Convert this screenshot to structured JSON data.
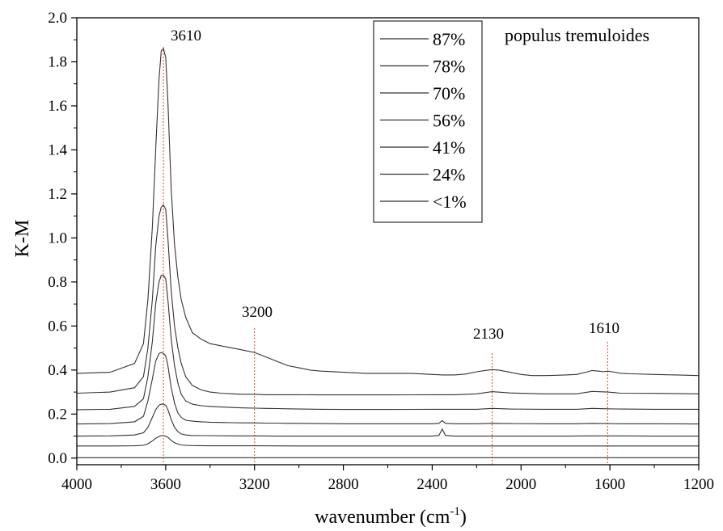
{
  "chart_data": {
    "type": "line",
    "title": "",
    "plot_label": "populus tremuloides",
    "xlabel": "wavenumber (cm",
    "xlabel_sup": "-1",
    "xlabel_suffix": ")",
    "ylabel": "K-M",
    "xlim": [
      4000,
      1200
    ],
    "ylim": [
      -0.03,
      2.0
    ],
    "x_reversed": true,
    "x_ticks": [
      "4000",
      "3600",
      "3200",
      "2800",
      "2400",
      "2000",
      "1600",
      "1200"
    ],
    "x_tick_values": [
      4000,
      3600,
      3200,
      2800,
      2400,
      2000,
      1600,
      1200
    ],
    "y_ticks": [
      "0.0",
      "0.2",
      "0.4",
      "0.6",
      "0.8",
      "1.0",
      "1.2",
      "1.4",
      "1.6",
      "1.8",
      "2.0"
    ],
    "y_tick_values": [
      0.0,
      0.2,
      0.4,
      0.6,
      0.8,
      1.0,
      1.2,
      1.4,
      1.6,
      1.8,
      2.0
    ],
    "grid": false,
    "legend_position": "top-right",
    "line_color": "#333333",
    "marker_color": "#e8412c",
    "annotations": [
      {
        "label": "3610",
        "x": 3610
      },
      {
        "label": "3200",
        "x": 3200
      },
      {
        "label": "2130",
        "x": 2130
      },
      {
        "label": "1610",
        "x": 1610
      }
    ],
    "series": [
      {
        "name": "87%",
        "x": [
          4000,
          3850,
          3740,
          3700,
          3680,
          3660,
          3645,
          3630,
          3620,
          3610,
          3600,
          3590,
          3575,
          3560,
          3545,
          3530,
          3510,
          3480,
          3440,
          3400,
          3350,
          3300,
          3250,
          3200,
          3150,
          3100,
          3050,
          3000,
          2950,
          2900,
          2800,
          2700,
          2600,
          2500,
          2400,
          2350,
          2300,
          2250,
          2200,
          2150,
          2130,
          2100,
          2050,
          2000,
          1950,
          1900,
          1850,
          1800,
          1750,
          1700,
          1680,
          1650,
          1630,
          1610,
          1590,
          1550,
          1500,
          1400,
          1300,
          1200
        ],
        "y": [
          0.385,
          0.39,
          0.43,
          0.52,
          0.72,
          1.05,
          1.4,
          1.72,
          1.85,
          1.86,
          1.82,
          1.62,
          1.22,
          0.97,
          0.82,
          0.72,
          0.64,
          0.57,
          0.54,
          0.52,
          0.51,
          0.5,
          0.49,
          0.48,
          0.46,
          0.44,
          0.42,
          0.41,
          0.4,
          0.395,
          0.39,
          0.385,
          0.385,
          0.385,
          0.38,
          0.378,
          0.378,
          0.382,
          0.392,
          0.4,
          0.402,
          0.4,
          0.39,
          0.38,
          0.375,
          0.375,
          0.376,
          0.378,
          0.38,
          0.392,
          0.398,
          0.395,
          0.392,
          0.395,
          0.392,
          0.385,
          0.383,
          0.38,
          0.378,
          0.375
        ]
      },
      {
        "name": "78%",
        "x": [
          4000,
          3850,
          3740,
          3700,
          3680,
          3660,
          3645,
          3630,
          3620,
          3610,
          3600,
          3590,
          3575,
          3560,
          3545,
          3530,
          3510,
          3480,
          3440,
          3400,
          3350,
          3300,
          3250,
          3200,
          3150,
          3100,
          3050,
          3000,
          2900,
          2800,
          2600,
          2400,
          2350,
          2300,
          2200,
          2130,
          2050,
          1900,
          1750,
          1680,
          1610,
          1550,
          1400,
          1200
        ],
        "y": [
          0.295,
          0.3,
          0.32,
          0.37,
          0.5,
          0.72,
          0.96,
          1.1,
          1.14,
          1.15,
          1.13,
          1.0,
          0.76,
          0.6,
          0.5,
          0.43,
          0.37,
          0.33,
          0.31,
          0.3,
          0.295,
          0.292,
          0.29,
          0.29,
          0.288,
          0.288,
          0.288,
          0.288,
          0.287,
          0.287,
          0.287,
          0.288,
          0.288,
          0.288,
          0.292,
          0.302,
          0.296,
          0.292,
          0.292,
          0.303,
          0.3,
          0.295,
          0.294,
          0.292
        ]
      },
      {
        "name": "70%",
        "x": [
          4000,
          3850,
          3740,
          3700,
          3680,
          3660,
          3645,
          3630,
          3620,
          3610,
          3600,
          3590,
          3575,
          3560,
          3545,
          3530,
          3510,
          3480,
          3440,
          3400,
          3350,
          3300,
          3250,
          3200,
          3150,
          3100,
          3050,
          3000,
          2900,
          2800,
          2600,
          2400,
          2350,
          2300,
          2200,
          2130,
          2050,
          1900,
          1750,
          1680,
          1610,
          1550,
          1400,
          1200
        ],
        "y": [
          0.22,
          0.222,
          0.235,
          0.27,
          0.37,
          0.53,
          0.7,
          0.8,
          0.83,
          0.83,
          0.815,
          0.72,
          0.54,
          0.42,
          0.34,
          0.29,
          0.26,
          0.245,
          0.238,
          0.235,
          0.232,
          0.23,
          0.228,
          0.227,
          0.226,
          0.225,
          0.224,
          0.223,
          0.222,
          0.221,
          0.221,
          0.222,
          0.222,
          0.222,
          0.222,
          0.226,
          0.223,
          0.222,
          0.222,
          0.226,
          0.224,
          0.223,
          0.222,
          0.222
        ]
      },
      {
        "name": "56%",
        "x": [
          4000,
          3850,
          3740,
          3700,
          3680,
          3660,
          3645,
          3630,
          3620,
          3610,
          3600,
          3590,
          3575,
          3560,
          3545,
          3530,
          3510,
          3480,
          3440,
          3400,
          3350,
          3300,
          3250,
          3200,
          3150,
          3100,
          3050,
          3000,
          2900,
          2800,
          2600,
          2400,
          2370,
          2355,
          2340,
          2300,
          2200,
          2130,
          2050,
          1900,
          1750,
          1680,
          1610,
          1550,
          1400,
          1200
        ],
        "y": [
          0.155,
          0.157,
          0.165,
          0.19,
          0.26,
          0.36,
          0.44,
          0.475,
          0.48,
          0.475,
          0.465,
          0.42,
          0.32,
          0.25,
          0.205,
          0.185,
          0.172,
          0.168,
          0.165,
          0.163,
          0.162,
          0.161,
          0.16,
          0.16,
          0.159,
          0.159,
          0.158,
          0.158,
          0.157,
          0.156,
          0.156,
          0.156,
          0.158,
          0.17,
          0.158,
          0.156,
          0.156,
          0.158,
          0.157,
          0.156,
          0.156,
          0.158,
          0.157,
          0.156,
          0.156,
          0.155
        ]
      },
      {
        "name": "41%",
        "x": [
          4000,
          3850,
          3740,
          3700,
          3680,
          3660,
          3645,
          3630,
          3620,
          3610,
          3600,
          3590,
          3575,
          3560,
          3545,
          3530,
          3510,
          3480,
          3440,
          3400,
          3300,
          3200,
          3100,
          3000,
          2800,
          2600,
          2400,
          2370,
          2355,
          2340,
          2300,
          2200,
          2130,
          2000,
          1800,
          1680,
          1610,
          1400,
          1200
        ],
        "y": [
          0.1,
          0.101,
          0.105,
          0.115,
          0.14,
          0.185,
          0.22,
          0.24,
          0.245,
          0.245,
          0.24,
          0.22,
          0.175,
          0.14,
          0.12,
          0.11,
          0.105,
          0.103,
          0.102,
          0.102,
          0.101,
          0.101,
          0.1,
          0.1,
          0.1,
          0.1,
          0.1,
          0.103,
          0.132,
          0.103,
          0.1,
          0.1,
          0.1,
          0.1,
          0.1,
          0.101,
          0.101,
          0.1,
          0.1
        ]
      },
      {
        "name": "24%",
        "x": [
          4000,
          3850,
          3740,
          3700,
          3680,
          3660,
          3645,
          3630,
          3620,
          3610,
          3600,
          3590,
          3575,
          3560,
          3545,
          3530,
          3510,
          3480,
          3400,
          3200,
          3000,
          2800,
          2600,
          2400,
          2200,
          2000,
          1800,
          1600,
          1400,
          1200
        ],
        "y": [
          0.055,
          0.055,
          0.056,
          0.058,
          0.065,
          0.078,
          0.09,
          0.098,
          0.102,
          0.102,
          0.1,
          0.094,
          0.08,
          0.07,
          0.064,
          0.06,
          0.058,
          0.057,
          0.056,
          0.056,
          0.055,
          0.055,
          0.055,
          0.055,
          0.055,
          0.055,
          0.055,
          0.055,
          0.055,
          0.055
        ]
      },
      {
        "name": "<1%",
        "x": [
          4000,
          3600,
          3200,
          2800,
          2400,
          2000,
          1600,
          1200
        ],
        "y": [
          0.002,
          0.002,
          0.002,
          0.002,
          0.002,
          0.002,
          0.002,
          0.002
        ]
      }
    ]
  }
}
